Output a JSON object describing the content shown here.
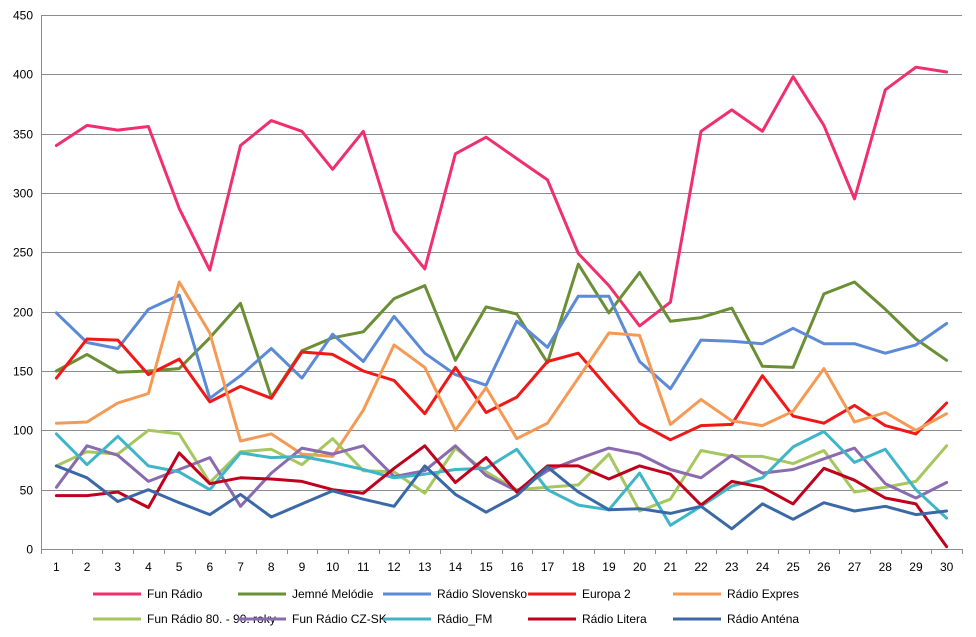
{
  "chart_data": {
    "type": "line",
    "title": "",
    "xlabel": "",
    "ylabel": "",
    "ylim": [
      0,
      450
    ],
    "yticks": [
      0,
      50,
      100,
      150,
      200,
      250,
      300,
      350,
      400,
      450
    ],
    "grid": "horizontal",
    "legend_position": "bottom",
    "categories": [
      "1",
      "2",
      "3",
      "4",
      "5",
      "6",
      "7",
      "8",
      "9",
      "10",
      "11",
      "12",
      "13",
      "14",
      "15",
      "16",
      "17",
      "18",
      "19",
      "20",
      "21",
      "22",
      "23",
      "24",
      "25",
      "26",
      "27",
      "28",
      "29",
      "30"
    ],
    "series": [
      {
        "name": "Fun Rádio",
        "color": "#f0306e",
        "values": [
          340,
          357,
          353,
          356,
          287,
          235,
          340,
          361,
          352,
          320,
          352,
          268,
          236,
          333,
          347,
          329,
          311,
          249,
          222,
          188,
          208,
          352,
          370,
          352,
          398,
          357,
          295,
          387,
          406,
          402
        ]
      },
      {
        "name": "Jemné Melódie",
        "color": "#6a8f34",
        "values": [
          150,
          164,
          149,
          150,
          152,
          178,
          207,
          128,
          167,
          178,
          183,
          211,
          222,
          159,
          204,
          198,
          157,
          240,
          199,
          233,
          192,
          195,
          203,
          154,
          153,
          215,
          225,
          202,
          177,
          159
        ]
      },
      {
        "name": "Rádio Slovensko",
        "color": "#5b8ad6",
        "values": [
          199,
          174,
          169,
          202,
          214,
          127,
          146,
          169,
          144,
          181,
          158,
          196,
          165,
          147,
          138,
          192,
          170,
          213,
          213,
          158,
          135,
          176,
          175,
          173,
          186,
          173,
          173,
          165,
          172,
          190
        ]
      },
      {
        "name": "Europa 2",
        "color": "#f01818",
        "values": [
          144,
          177,
          176,
          147,
          160,
          124,
          137,
          127,
          166,
          164,
          150,
          142,
          114,
          153,
          115,
          128,
          158,
          165,
          135,
          106,
          92,
          104,
          105,
          146,
          112,
          106,
          121,
          104,
          97,
          123
        ]
      },
      {
        "name": "Rádio Expres",
        "color": "#f59a55",
        "values": [
          106,
          107,
          123,
          131,
          225,
          182,
          91,
          97,
          80,
          78,
          117,
          172,
          153,
          100,
          136,
          93,
          106,
          144,
          182,
          180,
          105,
          126,
          108,
          104,
          116,
          152,
          107,
          115,
          100,
          114
        ]
      },
      {
        "name": "Fun Rádio 80. - 90. roky",
        "color": "#a6c65e",
        "values": [
          70,
          82,
          80,
          100,
          97,
          56,
          82,
          84,
          71,
          93,
          66,
          65,
          47,
          85,
          65,
          50,
          52,
          54,
          80,
          32,
          42,
          83,
          78,
          78,
          72,
          83,
          48,
          52,
          57,
          87
        ]
      },
      {
        "name": "Fun Rádio CZ-SK",
        "color": "#8a6bb0",
        "values": [
          52,
          87,
          79,
          57,
          67,
          77,
          36,
          64,
          85,
          80,
          87,
          61,
          66,
          87,
          62,
          49,
          66,
          76,
          85,
          80,
          67,
          60,
          79,
          64,
          67,
          76,
          85,
          55,
          43,
          56
        ]
      },
      {
        "name": "Rádio_FM",
        "color": "#3fb5c8",
        "values": [
          97,
          71,
          95,
          70,
          65,
          50,
          81,
          77,
          78,
          73,
          67,
          60,
          63,
          67,
          68,
          84,
          50,
          37,
          33,
          64,
          20,
          36,
          53,
          60,
          86,
          99,
          73,
          84,
          50,
          26
        ]
      },
      {
        "name": "Rádio Litera",
        "color": "#c0001c",
        "values": [
          45,
          45,
          48,
          35,
          81,
          55,
          60,
          59,
          57,
          50,
          47,
          68,
          87,
          56,
          77,
          48,
          70,
          70,
          59,
          70,
          63,
          37,
          57,
          52,
          38,
          68,
          58,
          43,
          38,
          2
        ]
      },
      {
        "name": "Rádio Anténa",
        "color": "#3b69a8",
        "values": [
          70,
          60,
          40,
          50,
          39,
          29,
          46,
          27,
          38,
          49,
          42,
          36,
          70,
          46,
          31,
          45,
          69,
          48,
          33,
          34,
          30,
          36,
          17,
          38,
          25,
          39,
          32,
          36,
          29,
          32
        ]
      }
    ]
  }
}
